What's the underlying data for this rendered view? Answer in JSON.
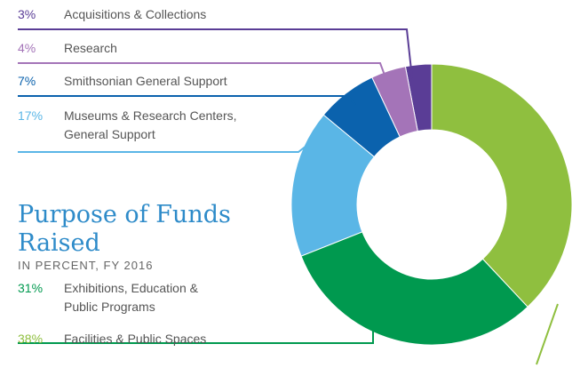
{
  "chart_data": {
    "type": "donut",
    "title": "Purpose of Funds Raised",
    "subtitle": "IN PERCENT, FY 2016",
    "categories": [
      "Acquisitions & Collections",
      "Research",
      "Smithsonian General Support",
      "Museums & Research Centers, General Support",
      "Exhibitions, Education & Public Programs",
      "Facilities & Public Spaces"
    ],
    "values": [
      3,
      4,
      7,
      17,
      31,
      38
    ],
    "value_labels": [
      "3%",
      "4%",
      "7%",
      "17%",
      "31%",
      "38%"
    ],
    "colors": [
      "#5a3d96",
      "#a474b8",
      "#0b62ad",
      "#5ab6e6",
      "#00994f",
      "#8fbf3f"
    ]
  }
}
